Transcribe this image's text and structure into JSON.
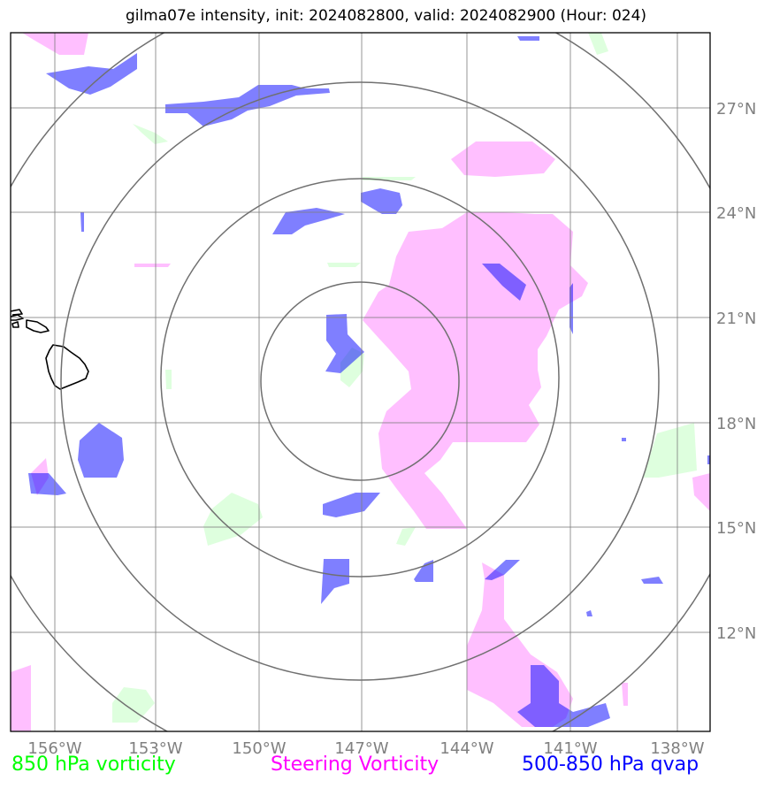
{
  "title": "gilma07e intensity, init: 2024082800, valid: 2024082900 (Hour: 024)",
  "axes": {
    "lon_labels": [
      "156°W",
      "153°W",
      "150°W",
      "147°W",
      "144°W",
      "141°W",
      "138°W"
    ],
    "lat_labels": [
      "27°N",
      "24°N",
      "21°N",
      "18°N",
      "15°N",
      "12°N"
    ],
    "lon_range": [
      -157.0,
      -137.0
    ],
    "lat_range": [
      9.0,
      29.0
    ],
    "grid": true
  },
  "range_rings": {
    "center": {
      "lon": -147.0,
      "lat": 19.2
    },
    "count": 4
  },
  "legend": {
    "vorticity_850": "850 hPa vorticity",
    "steering_vorticity": "Steering Vorticity",
    "qvap": "500-850 hPa qvap"
  },
  "colors": {
    "vorticity_850": "#00ff00",
    "steering_vorticity": "#ff00ff",
    "qvap": "#0000ff",
    "grid": "#808080",
    "coastline": "#000000"
  }
}
